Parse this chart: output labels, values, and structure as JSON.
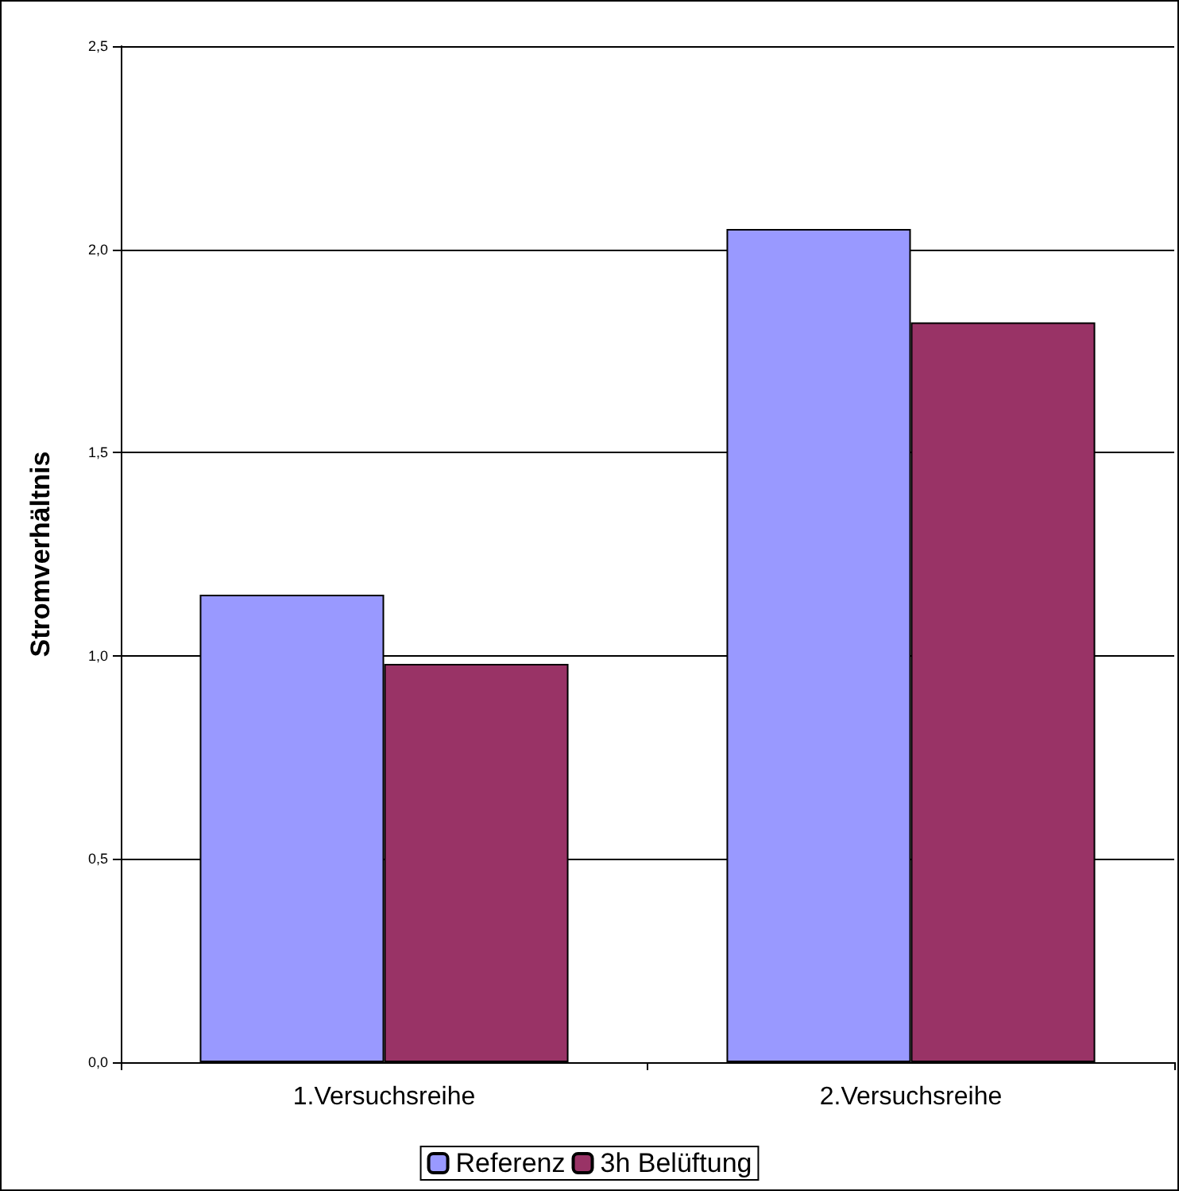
{
  "chart_data": {
    "type": "bar",
    "ylabel": "Stromverhältnis",
    "categories": [
      "1.Versuchsreihe",
      "2.Versuchsreihe"
    ],
    "series": [
      {
        "name": "Referenz",
        "color": "#9999ff",
        "values": [
          1.15,
          2.05
        ]
      },
      {
        "name": "3h Belüftung",
        "color": "#993366",
        "values": [
          0.98,
          1.82
        ]
      }
    ],
    "ylim": [
      0,
      2.5
    ],
    "yticks": [
      {
        "value": 0,
        "label": "0,0"
      },
      {
        "value": 0.5,
        "label": "0,5"
      },
      {
        "value": 1,
        "label": "1,0"
      },
      {
        "value": 1.5,
        "label": "1,5"
      },
      {
        "value": 2,
        "label": "2,0"
      },
      {
        "value": 2.5,
        "label": "2,5"
      }
    ],
    "grid": "y",
    "legend": "bottom"
  }
}
